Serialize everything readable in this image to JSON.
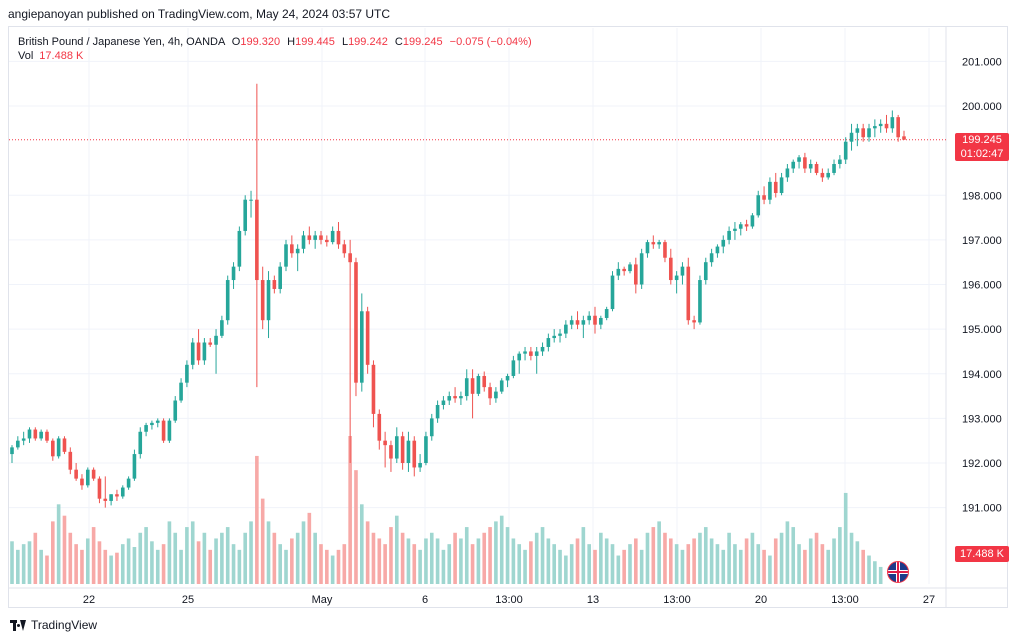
{
  "publisher_line": "angiepanoyan published on TradingView.com, May 24, 2024 03:57 UTC",
  "legend": {
    "symbol": "British Pound / Japanese Yen, 4h, OANDA",
    "o_label": "O",
    "o_value": "199.320",
    "h_label": "H",
    "h_value": "199.445",
    "l_label": "L",
    "l_value": "199.242",
    "c_label": "C",
    "c_value": "199.245",
    "change": "−0.075 (−0.04%)",
    "vol_label": "Vol",
    "vol_value": "17.488 K"
  },
  "price_tag": {
    "price": "199.245",
    "countdown": "01:02:47"
  },
  "vol_tag": "17.488 K",
  "footer": {
    "brand": "TradingView"
  },
  "colors": {
    "up": "#26a69a",
    "down": "#ef5350",
    "up_vol": "#9fd6d0",
    "down_vol": "#f7a9a7",
    "grid": "#f0f3fa",
    "tag": "#f23645"
  },
  "icons": [
    "tradingview-logo-icon",
    "uk-flag-icon"
  ],
  "chart_data": {
    "type": "candlestick",
    "title": "British Pound / Japanese Yen, 4h, OANDA",
    "y_axis": {
      "ticks": [
        "201.000",
        "200.000",
        "198.000",
        "197.000",
        "196.000",
        "195.000",
        "194.000",
        "193.000",
        "192.000",
        "191.000"
      ],
      "ylim": [
        190.3,
        201.5
      ],
      "side": "right"
    },
    "x_axis": {
      "ticks": [
        "22",
        "25",
        "May",
        "6",
        "13:00",
        "13",
        "13:00",
        "20",
        "13:00",
        "27"
      ]
    },
    "grid": true,
    "last_price": 199.245,
    "candles": [
      [
        192.2,
        192.4,
        192.0,
        192.35
      ],
      [
        192.35,
        192.6,
        192.3,
        192.5
      ],
      [
        192.5,
        192.7,
        192.4,
        192.55
      ],
      [
        192.55,
        192.8,
        192.45,
        192.75
      ],
      [
        192.75,
        192.8,
        192.5,
        192.55
      ],
      [
        192.55,
        192.75,
        192.5,
        192.7
      ],
      [
        192.7,
        192.75,
        192.45,
        192.5
      ],
      [
        192.5,
        192.55,
        192.05,
        192.15
      ],
      [
        192.15,
        192.6,
        192.1,
        192.55
      ],
      [
        192.55,
        192.6,
        192.2,
        192.25
      ],
      [
        192.25,
        192.35,
        191.75,
        191.85
      ],
      [
        191.85,
        192.0,
        191.6,
        191.65
      ],
      [
        191.65,
        191.75,
        191.4,
        191.5
      ],
      [
        191.5,
        191.9,
        191.45,
        191.85
      ],
      [
        191.85,
        191.9,
        191.6,
        191.65
      ],
      [
        191.65,
        191.7,
        191.1,
        191.2
      ],
      [
        191.2,
        191.7,
        191.0,
        191.15
      ],
      [
        191.15,
        191.3,
        191.05,
        191.3
      ],
      [
        191.3,
        191.4,
        191.15,
        191.25
      ],
      [
        191.25,
        191.5,
        191.2,
        191.45
      ],
      [
        191.45,
        191.7,
        191.4,
        191.65
      ],
      [
        191.65,
        192.3,
        191.6,
        192.2
      ],
      [
        192.2,
        192.8,
        192.1,
        192.7
      ],
      [
        192.7,
        192.9,
        192.6,
        192.85
      ],
      [
        192.85,
        192.95,
        192.75,
        192.9
      ],
      [
        192.9,
        193.0,
        192.8,
        192.95
      ],
      [
        192.95,
        193.0,
        192.45,
        192.5
      ],
      [
        192.5,
        193.0,
        192.45,
        192.95
      ],
      [
        192.95,
        193.5,
        192.9,
        193.4
      ],
      [
        193.4,
        193.9,
        193.35,
        193.8
      ],
      [
        193.8,
        194.3,
        193.7,
        194.2
      ],
      [
        194.2,
        194.8,
        194.1,
        194.7
      ],
      [
        194.7,
        195.0,
        194.2,
        194.3
      ],
      [
        194.3,
        194.8,
        194.2,
        194.7
      ],
      [
        194.7,
        194.8,
        194.6,
        194.65
      ],
      [
        194.65,
        195.0,
        194.0,
        194.85
      ],
      [
        194.85,
        195.3,
        194.8,
        195.2
      ],
      [
        195.2,
        196.2,
        195.1,
        196.1
      ],
      [
        196.1,
        196.5,
        195.9,
        196.4
      ],
      [
        196.4,
        197.3,
        196.3,
        197.2
      ],
      [
        197.2,
        198.0,
        197.1,
        197.9
      ],
      [
        197.9,
        198.1,
        197.5,
        197.9
      ],
      [
        197.9,
        200.5,
        193.7,
        196.1
      ],
      [
        196.1,
        196.4,
        195.0,
        195.2
      ],
      [
        195.2,
        196.3,
        194.8,
        196.1
      ],
      [
        196.1,
        196.2,
        195.8,
        195.9
      ],
      [
        195.9,
        196.5,
        195.8,
        196.4
      ],
      [
        196.4,
        197.0,
        196.3,
        196.9
      ],
      [
        196.9,
        197.1,
        196.6,
        196.7
      ],
      [
        196.7,
        196.9,
        196.3,
        196.8
      ],
      [
        196.8,
        197.2,
        196.7,
        197.1
      ],
      [
        197.1,
        197.3,
        196.9,
        197.0
      ],
      [
        197.0,
        197.2,
        196.8,
        197.1
      ],
      [
        197.1,
        197.2,
        196.9,
        197.0
      ],
      [
        197.0,
        197.1,
        196.85,
        196.95
      ],
      [
        196.95,
        197.3,
        196.9,
        197.2
      ],
      [
        197.2,
        197.4,
        196.8,
        196.9
      ],
      [
        196.9,
        197.0,
        196.6,
        196.7
      ],
      [
        196.7,
        197.0,
        192.0,
        196.5
      ],
      [
        196.5,
        196.6,
        193.5,
        193.8
      ],
      [
        193.8,
        195.8,
        193.6,
        195.4
      ],
      [
        195.4,
        195.5,
        194.0,
        194.2
      ],
      [
        194.2,
        194.3,
        192.8,
        193.1
      ],
      [
        193.1,
        193.2,
        192.3,
        192.5
      ],
      [
        192.5,
        192.7,
        191.9,
        192.4
      ],
      [
        192.4,
        192.5,
        191.8,
        192.1
      ],
      [
        192.1,
        192.8,
        192.0,
        192.6
      ],
      [
        192.6,
        192.7,
        191.85,
        192.0
      ],
      [
        192.0,
        192.7,
        191.8,
        192.5
      ],
      [
        192.5,
        192.6,
        191.7,
        191.9
      ],
      [
        191.9,
        192.2,
        191.8,
        192.0
      ],
      [
        192.0,
        192.7,
        191.95,
        192.6
      ],
      [
        192.6,
        193.1,
        192.5,
        193.0
      ],
      [
        193.0,
        193.4,
        192.9,
        193.3
      ],
      [
        193.3,
        193.5,
        193.2,
        193.4
      ],
      [
        193.4,
        193.6,
        193.3,
        193.5
      ],
      [
        193.5,
        193.7,
        193.35,
        193.45
      ],
      [
        193.45,
        193.6,
        193.3,
        193.5
      ],
      [
        193.5,
        194.1,
        193.4,
        193.9
      ],
      [
        193.9,
        194.1,
        193.0,
        193.55
      ],
      [
        193.55,
        194.0,
        193.5,
        193.95
      ],
      [
        193.95,
        194.05,
        193.6,
        193.7
      ],
      [
        193.7,
        193.8,
        193.3,
        193.45
      ],
      [
        193.45,
        193.7,
        193.35,
        193.6
      ],
      [
        193.6,
        193.9,
        193.55,
        193.85
      ],
      [
        193.85,
        194.0,
        193.7,
        193.95
      ],
      [
        193.95,
        194.4,
        193.9,
        194.3
      ],
      [
        194.3,
        194.5,
        194.0,
        194.45
      ],
      [
        194.45,
        194.6,
        194.3,
        194.5
      ],
      [
        194.5,
        194.6,
        194.3,
        194.4
      ],
      [
        194.4,
        194.6,
        194.0,
        194.5
      ],
      [
        194.5,
        194.7,
        194.4,
        194.6
      ],
      [
        194.6,
        194.9,
        194.5,
        194.8
      ],
      [
        194.8,
        195.0,
        194.7,
        194.85
      ],
      [
        194.85,
        195.0,
        194.7,
        194.9
      ],
      [
        194.9,
        195.2,
        194.8,
        195.1
      ],
      [
        195.1,
        195.3,
        195.0,
        195.2
      ],
      [
        195.2,
        195.4,
        195.0,
        195.1
      ],
      [
        195.1,
        195.3,
        194.8,
        195.2
      ],
      [
        195.2,
        195.4,
        195.1,
        195.3
      ],
      [
        195.3,
        195.5,
        194.9,
        195.1
      ],
      [
        195.1,
        195.3,
        195.0,
        195.25
      ],
      [
        195.25,
        195.5,
        195.2,
        195.45
      ],
      [
        195.45,
        196.3,
        195.4,
        196.2
      ],
      [
        196.2,
        196.5,
        196.1,
        196.35
      ],
      [
        196.35,
        196.4,
        196.2,
        196.3
      ],
      [
        196.3,
        196.5,
        196.25,
        196.45
      ],
      [
        196.45,
        196.6,
        195.8,
        196.0
      ],
      [
        196.0,
        196.8,
        195.9,
        196.7
      ],
      [
        196.7,
        197.0,
        196.6,
        196.95
      ],
      [
        196.95,
        197.1,
        196.8,
        196.9
      ],
      [
        196.9,
        197.0,
        196.8,
        196.95
      ],
      [
        196.95,
        197.0,
        196.5,
        196.6
      ],
      [
        196.6,
        196.8,
        196.0,
        196.1
      ],
      [
        196.1,
        196.3,
        195.8,
        196.2
      ],
      [
        196.2,
        196.5,
        196.0,
        196.4
      ],
      [
        196.4,
        196.6,
        195.1,
        195.2
      ],
      [
        195.2,
        195.3,
        195.0,
        195.15
      ],
      [
        195.15,
        196.2,
        195.1,
        196.1
      ],
      [
        196.1,
        196.6,
        196.0,
        196.5
      ],
      [
        196.5,
        196.8,
        196.4,
        196.7
      ],
      [
        196.7,
        196.9,
        196.6,
        196.85
      ],
      [
        196.85,
        197.1,
        196.7,
        197.0
      ],
      [
        197.0,
        197.3,
        196.9,
        197.2
      ],
      [
        197.2,
        197.4,
        197.0,
        197.25
      ],
      [
        197.25,
        197.4,
        197.1,
        197.35
      ],
      [
        197.35,
        197.45,
        197.2,
        197.3
      ],
      [
        197.3,
        197.6,
        197.25,
        197.55
      ],
      [
        197.55,
        198.1,
        197.5,
        198.0
      ],
      [
        198.0,
        198.2,
        197.8,
        197.9
      ],
      [
        197.9,
        198.4,
        197.8,
        198.3
      ],
      [
        198.3,
        198.5,
        197.95,
        198.05
      ],
      [
        198.05,
        198.5,
        198.0,
        198.4
      ],
      [
        198.4,
        198.7,
        198.3,
        198.6
      ],
      [
        198.6,
        198.8,
        198.5,
        198.75
      ],
      [
        198.75,
        198.9,
        198.6,
        198.85
      ],
      [
        198.85,
        198.95,
        198.5,
        198.6
      ],
      [
        198.6,
        198.8,
        198.5,
        198.7
      ],
      [
        198.7,
        198.75,
        198.45,
        198.5
      ],
      [
        198.5,
        198.6,
        198.3,
        198.4
      ],
      [
        198.4,
        198.6,
        198.35,
        198.5
      ],
      [
        198.5,
        198.8,
        198.45,
        198.7
      ],
      [
        198.7,
        198.9,
        198.6,
        198.8
      ],
      [
        198.8,
        199.3,
        198.7,
        199.2
      ],
      [
        199.2,
        199.6,
        199.0,
        199.4
      ],
      [
        199.4,
        199.6,
        199.1,
        199.5
      ],
      [
        199.5,
        199.6,
        199.2,
        199.3
      ],
      [
        199.3,
        199.6,
        199.2,
        199.5
      ],
      [
        199.5,
        199.7,
        199.3,
        199.55
      ],
      [
        199.55,
        199.7,
        199.4,
        199.6
      ],
      [
        199.6,
        199.8,
        199.4,
        199.5
      ],
      [
        199.5,
        199.9,
        199.4,
        199.75
      ],
      [
        199.75,
        199.8,
        199.2,
        199.3
      ],
      [
        199.32,
        199.445,
        199.242,
        199.245
      ]
    ],
    "volume": [
      15,
      12,
      14,
      15,
      18,
      12,
      10,
      22,
      28,
      24,
      18,
      14,
      12,
      16,
      20,
      15,
      12,
      10,
      11,
      14,
      16,
      13,
      18,
      20,
      15,
      12,
      14,
      22,
      18,
      12,
      20,
      22,
      15,
      18,
      12,
      16,
      18,
      20,
      14,
      12,
      18,
      22,
      45,
      30,
      22,
      18,
      14,
      12,
      16,
      18,
      22,
      25,
      18,
      14,
      12,
      10,
      12,
      14,
      52,
      40,
      28,
      22,
      18,
      16,
      14,
      20,
      24,
      18,
      16,
      14,
      12,
      16,
      18,
      16,
      12,
      14,
      18,
      16,
      20,
      14,
      16,
      18,
      20,
      22,
      24,
      20,
      16,
      14,
      12,
      15,
      18,
      20,
      16,
      14,
      12,
      10,
      14,
      16,
      20,
      14,
      12,
      18,
      16,
      14,
      10,
      12,
      14,
      16,
      12,
      18,
      20,
      22,
      18,
      16,
      14,
      12,
      14,
      16,
      18,
      20,
      16,
      14,
      12,
      18,
      14,
      12,
      16,
      18,
      14,
      12,
      10,
      16,
      18,
      22,
      20,
      14,
      12,
      16,
      18,
      14,
      12,
      16,
      20,
      32,
      18,
      15,
      12,
      10,
      8,
      6
    ]
  }
}
